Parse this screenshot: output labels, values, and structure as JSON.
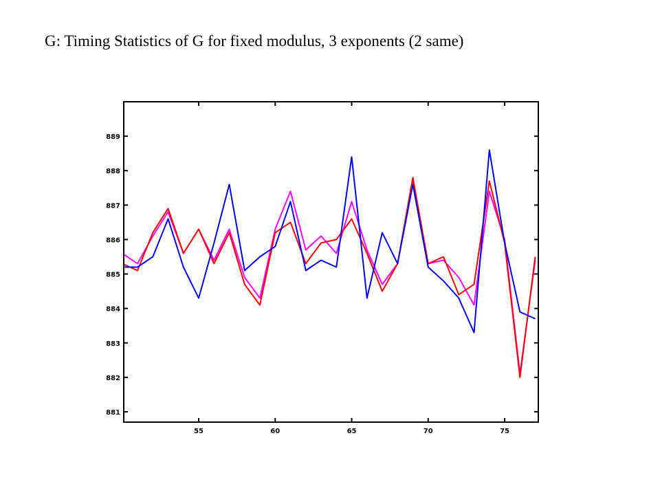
{
  "title": "G: Timing Statistics of G for fixed modulus, 3 exponents (2 same)",
  "chart_data": {
    "type": "line",
    "title": "G: Timing Statistics of G for fixed modulus, 3 exponents (2 same)",
    "xlabel": "",
    "ylabel": "",
    "xlim": [
      50.1,
      77.2
    ],
    "ylim": [
      880.7,
      890.0
    ],
    "xticks": [
      55,
      60,
      65,
      70,
      75
    ],
    "yticks": [
      881,
      882,
      883,
      884,
      885,
      886,
      887,
      888,
      889
    ],
    "grid": false,
    "x": [
      50,
      51,
      52,
      53,
      54,
      55,
      56,
      57,
      58,
      59,
      60,
      61,
      62,
      63,
      64,
      65,
      66,
      67,
      68,
      69,
      70,
      71,
      72,
      73,
      74,
      75,
      76,
      77
    ],
    "series": [
      {
        "color": "#ff00ff",
        "values": [
          885.6,
          885.3,
          886.1,
          886.8,
          885.6,
          886.3,
          885.4,
          886.3,
          884.9,
          884.3,
          886.3,
          887.4,
          885.7,
          886.1,
          885.6,
          887.1,
          885.7,
          884.7,
          885.3,
          887.7,
          885.3,
          885.4,
          884.9,
          884.1,
          887.4,
          886.0,
          882.1,
          885.4
        ]
      },
      {
        "color": "#ff0000",
        "values": [
          885.3,
          885.1,
          886.2,
          886.9,
          885.6,
          886.3,
          885.3,
          886.2,
          884.7,
          884.1,
          886.2,
          886.5,
          885.3,
          885.9,
          886.0,
          886.6,
          885.6,
          884.5,
          885.3,
          887.8,
          885.3,
          885.5,
          884.4,
          884.7,
          887.7,
          885.9,
          882.0,
          885.5
        ]
      },
      {
        "color": "#0000ff",
        "values": [
          885.2,
          885.2,
          885.5,
          886.6,
          885.2,
          884.3,
          885.9,
          887.6,
          885.1,
          885.5,
          885.8,
          887.1,
          885.1,
          885.4,
          885.2,
          888.4,
          884.3,
          886.2,
          885.3,
          887.6,
          885.2,
          884.8,
          884.3,
          883.3,
          888.6,
          885.9,
          883.9,
          883.7
        ]
      }
    ]
  }
}
